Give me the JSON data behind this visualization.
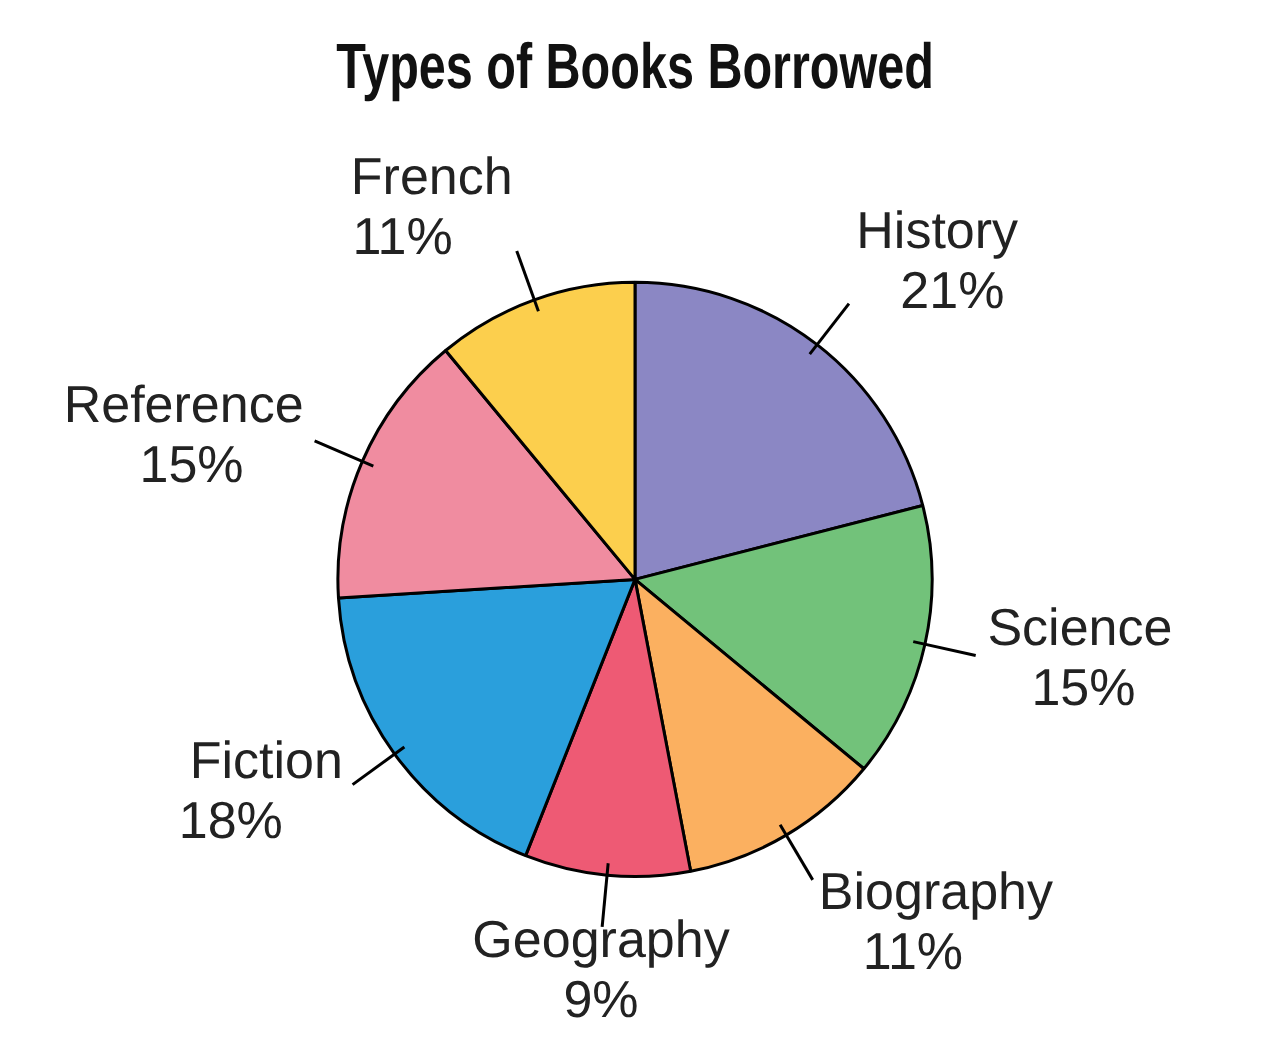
{
  "chart_data": {
    "type": "pie",
    "title": "Types of Books Borrowed",
    "categories": [
      "History",
      "Science",
      "Biography",
      "Geography",
      "Fiction",
      "Reference",
      "French"
    ],
    "values": [
      21,
      15,
      11,
      9,
      18,
      15,
      11
    ],
    "value_labels": [
      "21%",
      "15%",
      "11%",
      "9%",
      "18%",
      "15%",
      "11%"
    ],
    "colors": [
      "#8b87c4",
      "#72c27a",
      "#fbb060",
      "#ee5a74",
      "#2a9fdc",
      "#f08ca0",
      "#fccf4d"
    ],
    "legend": false
  }
}
